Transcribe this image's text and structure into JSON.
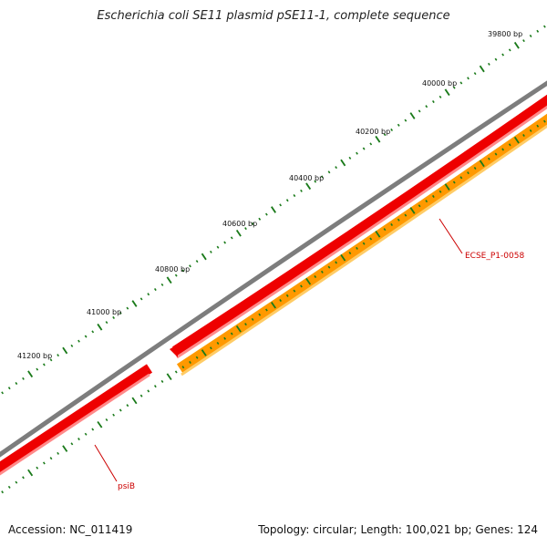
{
  "title": "Escherichia coli SE11 plasmid pSE11-1, complete sequence",
  "footer": {
    "accession": "Accession: NC_011419",
    "summary": "Topology: circular; Length: 100,021 bp; Genes: 124"
  },
  "ticks": [
    {
      "bp": 39800,
      "label": "39800 bp"
    },
    {
      "bp": 40000,
      "label": "40000 bp"
    },
    {
      "bp": 40200,
      "label": "40200 bp"
    },
    {
      "bp": 40400,
      "label": "40400 bp"
    },
    {
      "bp": 40600,
      "label": "40600 bp"
    },
    {
      "bp": 40800,
      "label": "40800 bp"
    },
    {
      "bp": 41000,
      "label": "41000 bp"
    },
    {
      "bp": 41200,
      "label": "41200 bp"
    }
  ],
  "genes": [
    {
      "name": "psiB",
      "color": "#ee0000"
    },
    {
      "name": "ECSE_P1-0058",
      "color": "#ee0000"
    }
  ],
  "colors": {
    "backbone": "#8a8a8a",
    "gene": "#ee0000",
    "cds": "#ff9900",
    "tick": "#1a7a1a",
    "label": "#cc0000"
  }
}
